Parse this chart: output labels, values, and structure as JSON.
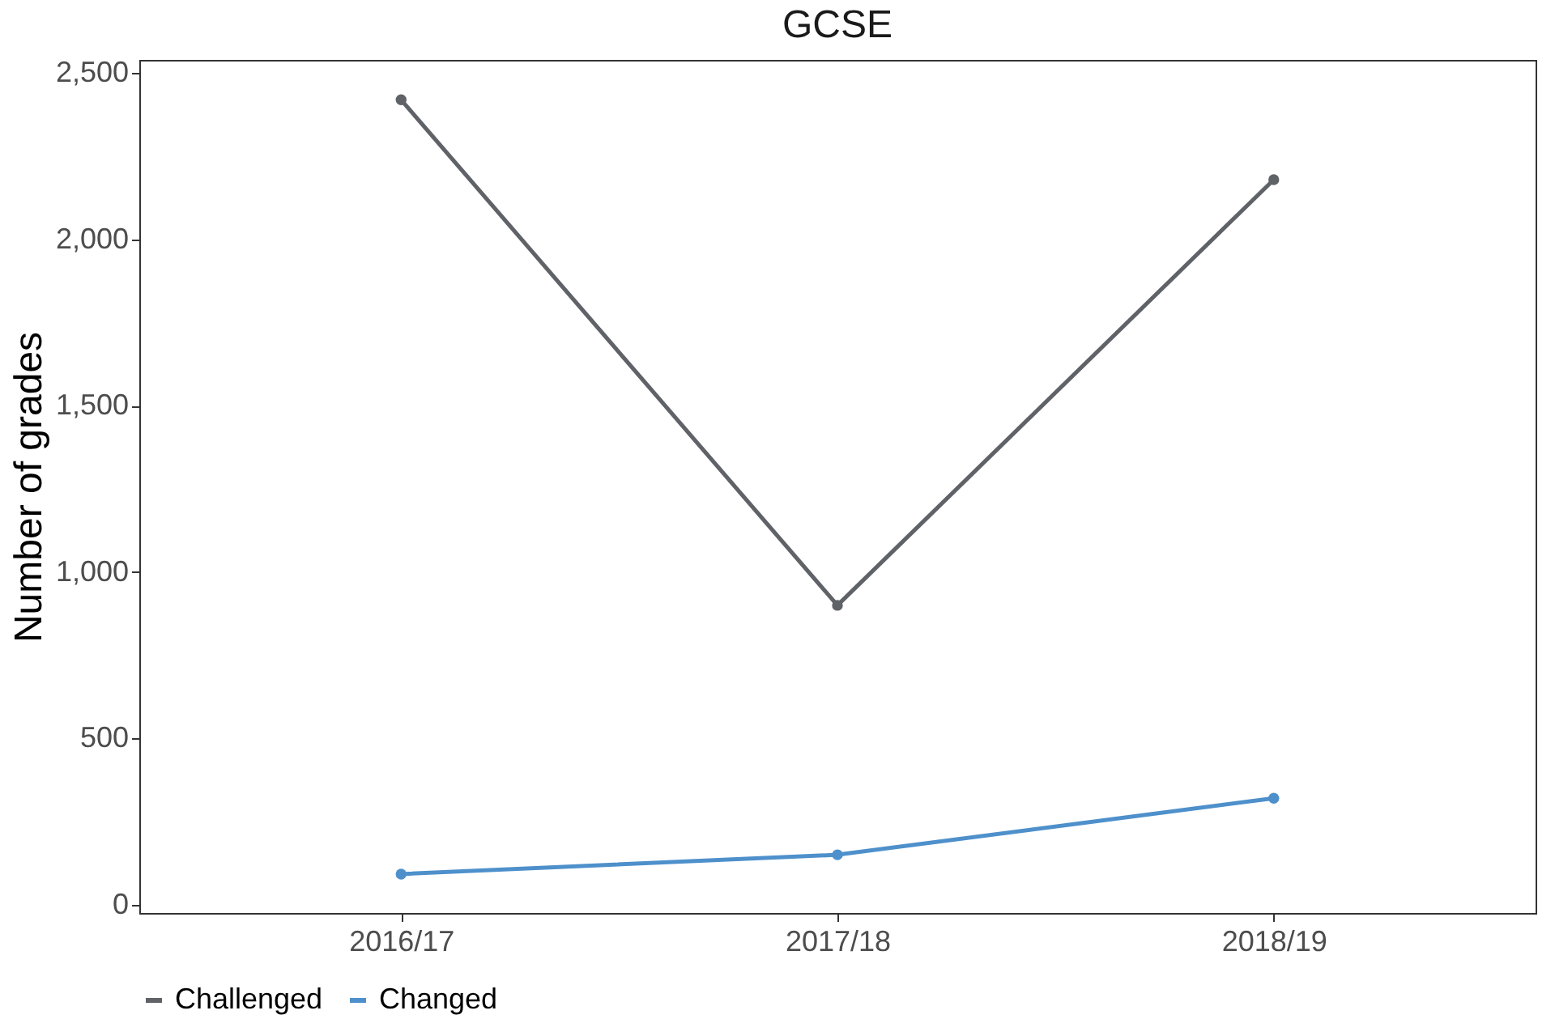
{
  "chart_data": {
    "type": "line",
    "title": "GCSE",
    "ylabel": "Number of grades",
    "categories": [
      "2016/17",
      "2017/18",
      "2018/19"
    ],
    "series": [
      {
        "name": "Challenged",
        "color": "#5f6368",
        "values": [
          2420,
          900,
          2180
        ]
      },
      {
        "name": "Changed",
        "color": "#4e90cb",
        "values": [
          92,
          150,
          320
        ]
      }
    ],
    "ylim": [
      -25,
      2540
    ],
    "yticks": [
      {
        "value": 0,
        "label": "0"
      },
      {
        "value": 500,
        "label": "500"
      },
      {
        "value": 1000,
        "label": "1,000"
      },
      {
        "value": 1500,
        "label": "1,500"
      },
      {
        "value": 2000,
        "label": "2,000"
      },
      {
        "value": 2500,
        "label": "2,500"
      }
    ],
    "grid": false,
    "legend": "bottom",
    "marker": "circle",
    "line_style": "solid"
  }
}
